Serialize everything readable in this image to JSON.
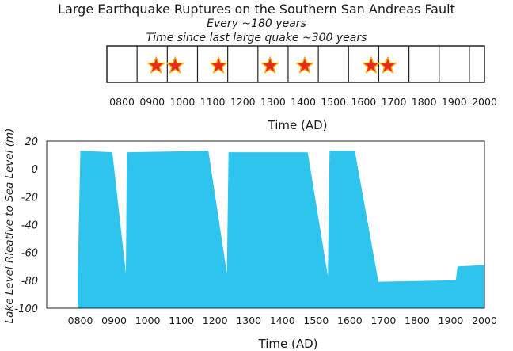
{
  "title": "Large Earthquake Ruptures on the Southern San Andreas Fault",
  "subtitle_1": "Every ~180 years",
  "subtitle_2": "Time since last large quake ~300 years",
  "colors": {
    "lake_fill": "#2ec4ee",
    "star_fill": "#e8291c",
    "star_stroke": "#f3b21f",
    "axis": "#222222"
  },
  "chart_data": [
    {
      "type": "timeline",
      "title": "Large Earthquake Ruptures on the Southern San Andreas Fault",
      "xlabel": "Time (AD)",
      "xlim": [
        750,
        2000
      ],
      "box_edges": [
        750,
        850,
        950,
        1050,
        1150,
        1250,
        1350,
        1450,
        1550,
        1650,
        1750,
        1850,
        1950,
        2000
      ],
      "tick_labels": [
        "0800",
        "0900",
        "1000",
        "1100",
        "1200",
        "1300",
        "1400",
        "1500",
        "1600",
        "1700",
        "1800",
        "1900",
        "2000"
      ],
      "tick_values": [
        800,
        900,
        1000,
        1100,
        1200,
        1300,
        1400,
        1500,
        1600,
        1700,
        1800,
        1900,
        2000
      ],
      "earthquakes_AD": [
        913,
        976,
        1120,
        1290,
        1405,
        1625,
        1680
      ],
      "marker": "star"
    },
    {
      "type": "area",
      "xlabel": "Time (AD)",
      "ylabel": "Lake Level Rleative to Sea Level (m)",
      "xlim": [
        700,
        2000
      ],
      "ylim": [
        -100,
        20
      ],
      "xtick_labels": [
        "0800",
        "0900",
        "1000",
        "1100",
        "1200",
        "1300",
        "1400",
        "1500",
        "1600",
        "1700",
        "1800",
        "1900",
        "2000"
      ],
      "xtick_values": [
        800,
        900,
        1000,
        1100,
        1200,
        1300,
        1400,
        1500,
        1600,
        1700,
        1800,
        1900,
        2000
      ],
      "ytick_labels": [
        "20",
        "0",
        "-20",
        "-40",
        "-60",
        "-80",
        "-100"
      ],
      "ytick_values": [
        20,
        0,
        -20,
        -40,
        -60,
        -80,
        -100
      ],
      "series": [
        {
          "x": [
            792,
            800,
            895,
            935,
            938,
            1180,
            1235,
            1240,
            1475,
            1535,
            1540,
            1615,
            1685,
            1690,
            1915,
            1920,
            2000
          ],
          "y": [
            -80,
            13,
            12,
            -75,
            12,
            13,
            -75,
            12,
            12,
            -77,
            13,
            13,
            -81,
            -81,
            -80,
            -70,
            -69
          ]
        }
      ]
    }
  ]
}
